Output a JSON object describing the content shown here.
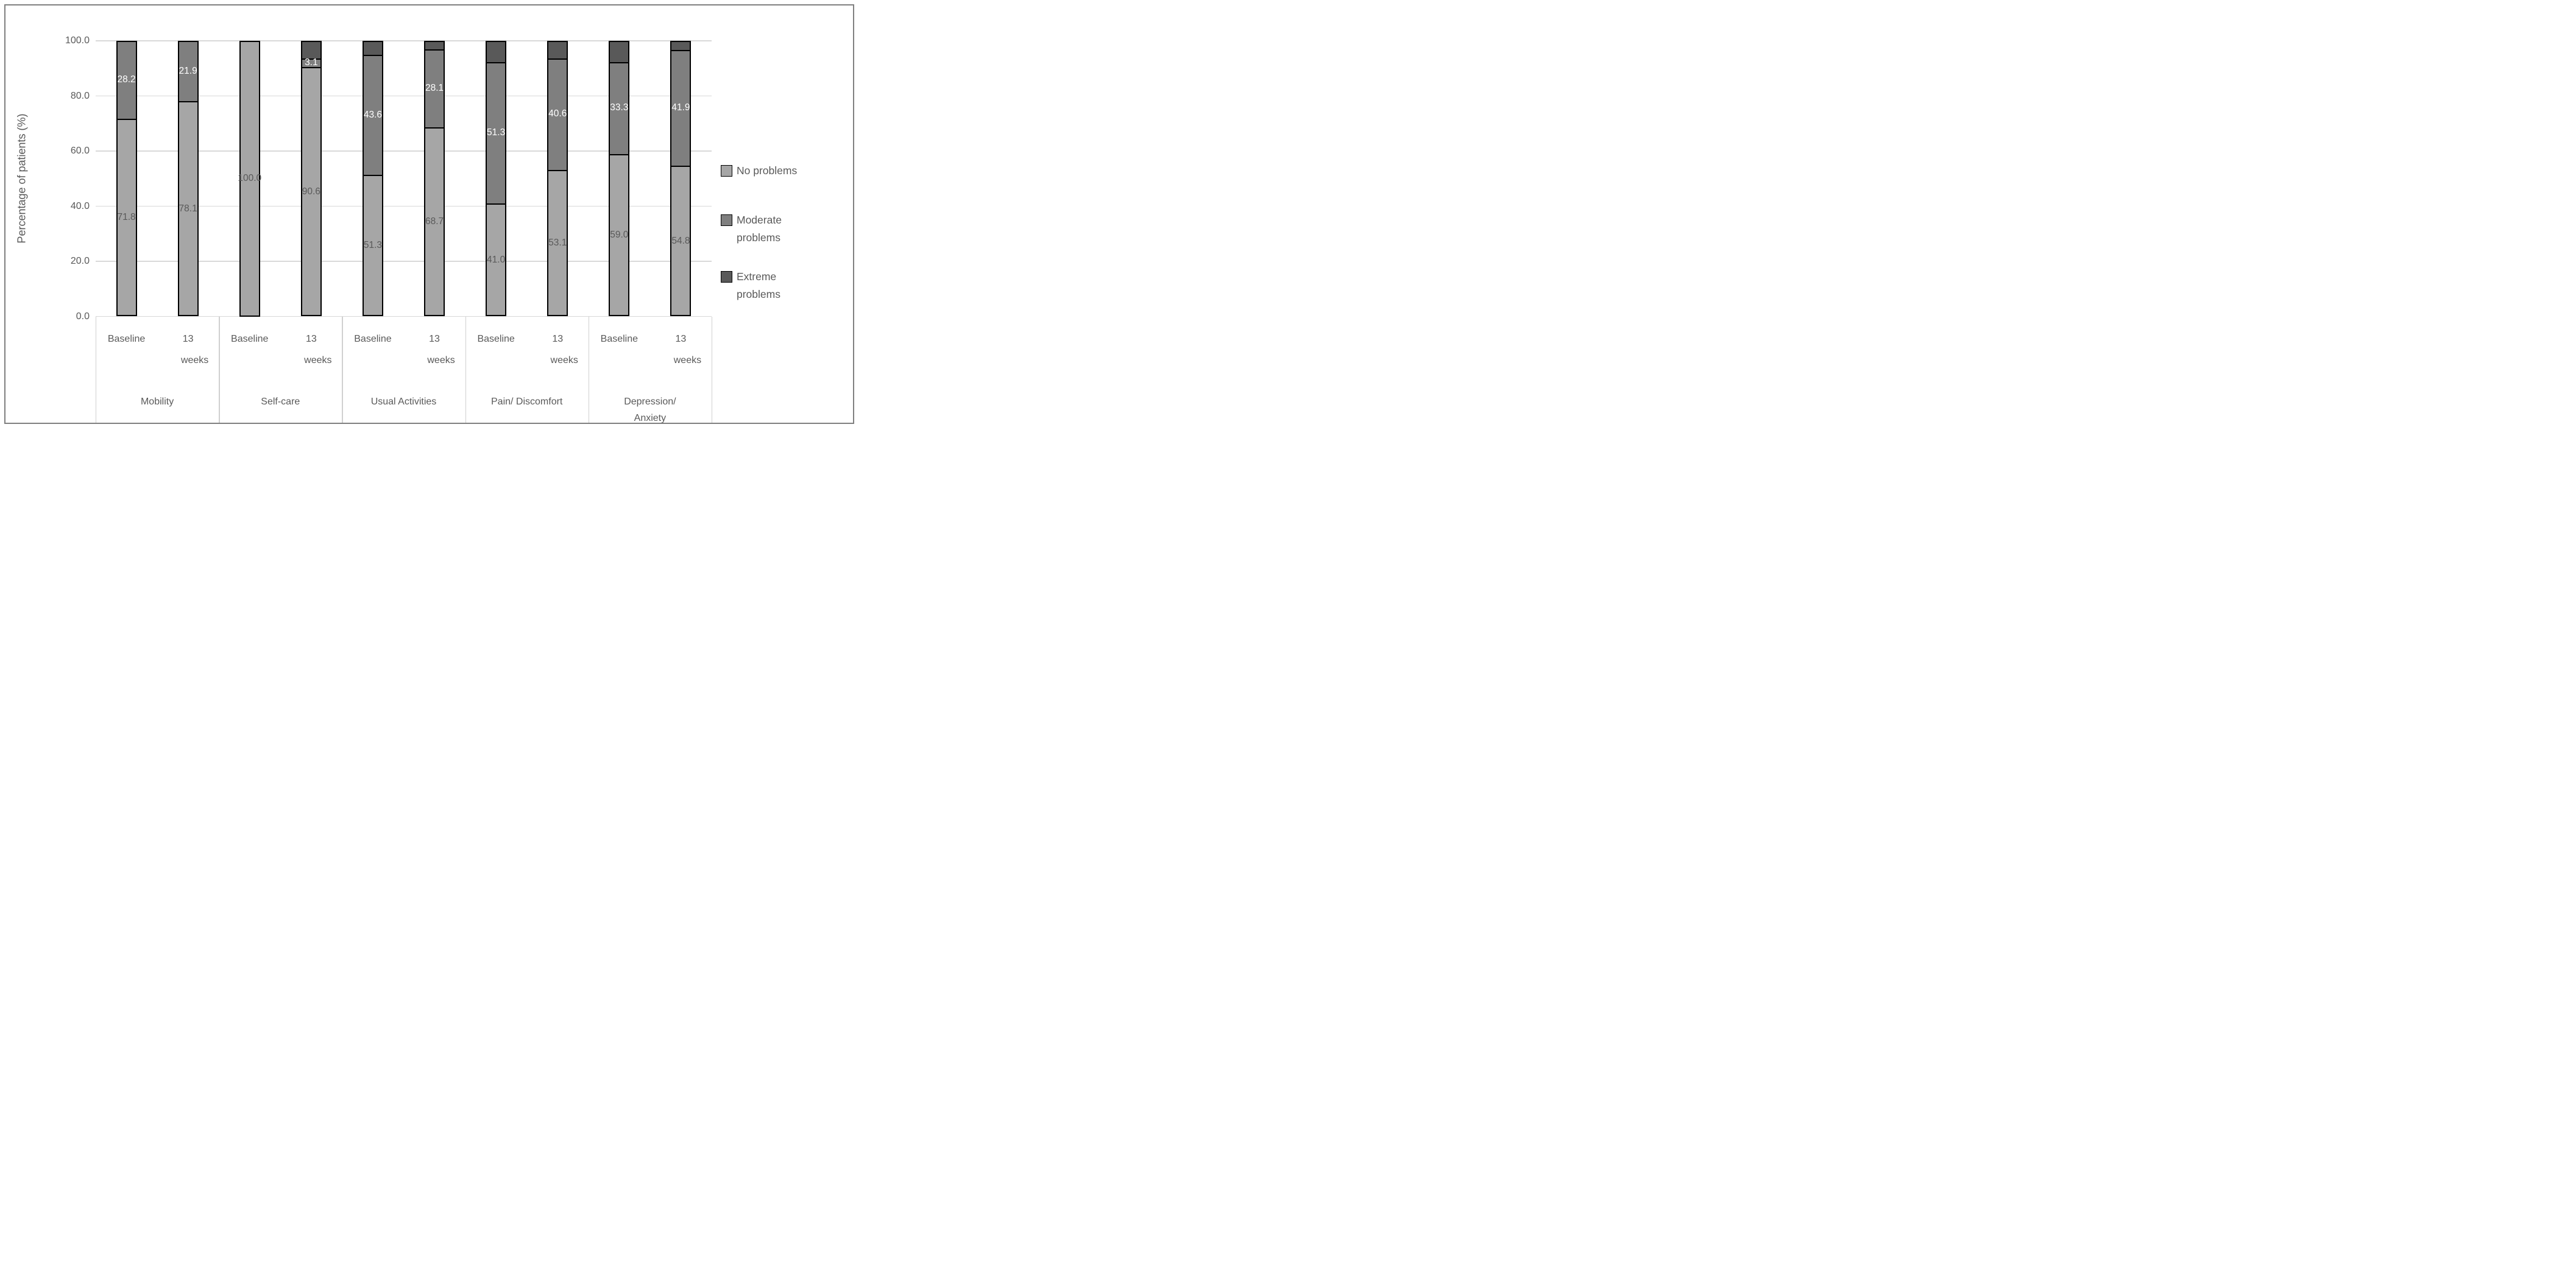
{
  "axis": {
    "y_title": "Percentage of patients (%)",
    "y_ticks": [
      {
        "label": "100.0",
        "value": 100
      },
      {
        "label": "80.0",
        "value": 80
      },
      {
        "label": "60.0",
        "value": 60
      },
      {
        "label": "40.0",
        "value": 40
      },
      {
        "label": "20.0",
        "value": 20
      },
      {
        "label": "0.0",
        "value": 0
      }
    ]
  },
  "legend": {
    "items": [
      {
        "label": "No problems",
        "color": "#a6a6a6"
      },
      {
        "label": "Moderate problems",
        "color": "#7f7f7f"
      },
      {
        "label": "Extreme problems",
        "color": "#595959"
      }
    ]
  },
  "chart_data": {
    "type": "bar",
    "subtype": "stacked-column",
    "title": "",
    "xlabel": "",
    "ylabel": "Percentage of patients (%)",
    "ylim": [
      0,
      100
    ],
    "gridlines": true,
    "legend_position": "right",
    "series_names": [
      "No problems",
      "Moderate problems",
      "Extreme problems"
    ],
    "series_colors": [
      "#a6a6a6",
      "#7f7f7f",
      "#595959"
    ],
    "label_colors": [
      "#595959",
      "#ffffff",
      "#ffffff"
    ],
    "groups": [
      {
        "category": "Mobility",
        "category_lines": [
          "Mobility"
        ],
        "bars": [
          {
            "time": "Baseline",
            "time_lines": [
              "Baseline"
            ],
            "values": [
              71.8,
              28.2,
              0.0
            ],
            "shown_labels": [
              "71.8",
              "28.2",
              ""
            ]
          },
          {
            "time": "13 weeks",
            "time_lines": [
              "13",
              "weeks"
            ],
            "values": [
              78.1,
              21.9,
              0.0
            ],
            "shown_labels": [
              "78.1",
              "21.9",
              ""
            ]
          }
        ]
      },
      {
        "category": "Self-care",
        "category_lines": [
          "Self-care"
        ],
        "bars": [
          {
            "time": "Baseline",
            "time_lines": [
              "Baseline"
            ],
            "values": [
              100.0,
              0.0,
              0.0
            ],
            "shown_labels": [
              "100.0",
              "",
              ""
            ]
          },
          {
            "time": "13 weeks",
            "time_lines": [
              "13",
              "weeks"
            ],
            "values": [
              90.6,
              3.1,
              6.3
            ],
            "shown_labels": [
              "90.6",
              "3.1",
              ""
            ]
          }
        ]
      },
      {
        "category": "Usual Activities",
        "category_lines": [
          "Usual Activities"
        ],
        "bars": [
          {
            "time": "Baseline",
            "time_lines": [
              "Baseline"
            ],
            "values": [
              51.3,
              43.6,
              5.1
            ],
            "shown_labels": [
              "51.3",
              "43.6",
              ""
            ]
          },
          {
            "time": "13 weeks",
            "time_lines": [
              "13",
              "weeks"
            ],
            "values": [
              68.7,
              28.1,
              3.2
            ],
            "shown_labels": [
              "68.7",
              "28.1",
              ""
            ]
          }
        ]
      },
      {
        "category": "Pain/ Discomfort",
        "category_lines": [
          "Pain/ Discomfort"
        ],
        "bars": [
          {
            "time": "Baseline",
            "time_lines": [
              "Baseline"
            ],
            "values": [
              41.0,
              51.3,
              7.7
            ],
            "shown_labels": [
              "41.0",
              "51.3",
              ""
            ]
          },
          {
            "time": "13 weeks",
            "time_lines": [
              "13",
              "weeks"
            ],
            "values": [
              53.1,
              40.6,
              6.3
            ],
            "shown_labels": [
              "53.1",
              "40.6",
              ""
            ]
          }
        ]
      },
      {
        "category": "Depression/ Anxiety",
        "category_lines": [
          "Depression/",
          "Anxiety"
        ],
        "bars": [
          {
            "time": "Baseline",
            "time_lines": [
              "Baseline"
            ],
            "values": [
              59.0,
              33.3,
              7.7
            ],
            "shown_labels": [
              "59.0",
              "33.3",
              ""
            ]
          },
          {
            "time": "13 weeks",
            "time_lines": [
              "13",
              "weeks"
            ],
            "values": [
              54.8,
              41.9,
              3.3
            ],
            "shown_labels": [
              "54.8",
              "41.9",
              ""
            ]
          }
        ]
      }
    ]
  }
}
